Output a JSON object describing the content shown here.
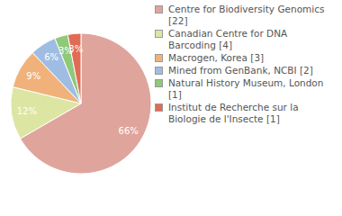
{
  "chart_data": {
    "type": "pie",
    "categories": [
      "Centre for Biodiversity Genomics [22]",
      "Canadian Centre for DNA Barcoding [4]",
      "Macrogen, Korea [3]",
      "Mined from GenBank, NCBI [2]",
      "Natural History Museum, London [1]",
      "Institut de Recherche sur la Biologie de l'Insecte [1]"
    ],
    "values": [
      66,
      12,
      9,
      6,
      3,
      3
    ],
    "value_labels": [
      "66%",
      "12%",
      "9%",
      "6%",
      "3%",
      "3%"
    ],
    "colors": [
      "#dfa59c",
      "#dde5a3",
      "#f0b27a",
      "#9fbde3",
      "#8fc97a",
      "#e06c55"
    ],
    "data_labels": true,
    "legend": "right"
  }
}
